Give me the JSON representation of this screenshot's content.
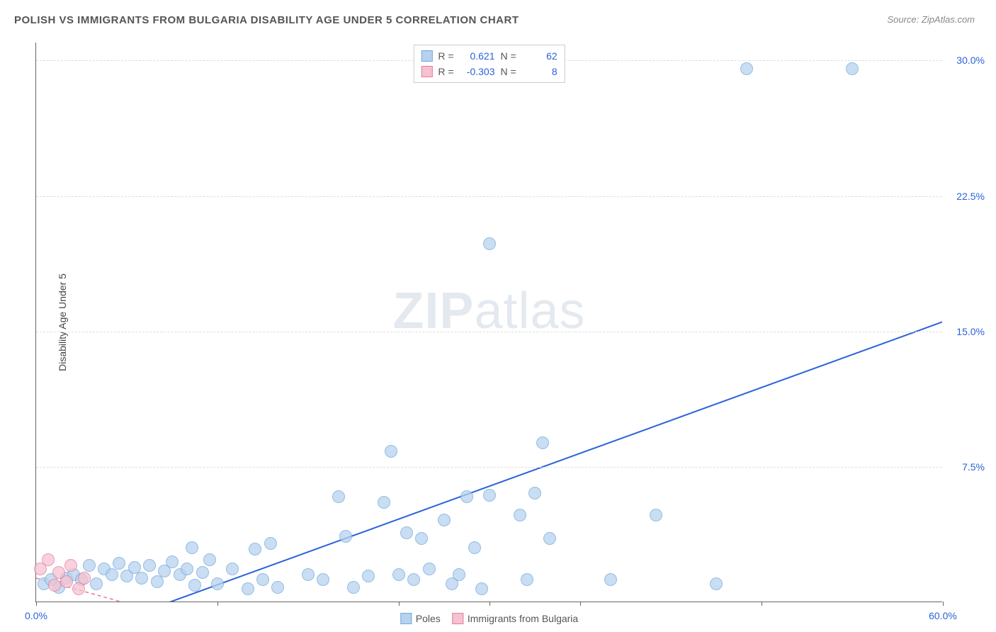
{
  "title": "POLISH VS IMMIGRANTS FROM BULGARIA DISABILITY AGE UNDER 5 CORRELATION CHART",
  "source_label": "Source: ZipAtlas.com",
  "y_axis_label": "Disability Age Under 5",
  "watermark": {
    "bold": "ZIP",
    "rest": "atlas"
  },
  "chart": {
    "type": "scatter",
    "x_range": [
      0,
      60
    ],
    "y_range": [
      0,
      31
    ],
    "x_ticks": [
      0,
      12,
      24,
      30,
      36,
      48,
      60
    ],
    "x_tick_labels": {
      "0": "0.0%",
      "60": "60.0%"
    },
    "y_ticks": [
      7.5,
      15.0,
      22.5,
      30.0
    ],
    "y_tick_labels": [
      "7.5%",
      "15.0%",
      "22.5%",
      "30.0%"
    ],
    "grid_color": "#dddddd",
    "background_color": "#ffffff",
    "axis_color": "#666666",
    "marker_radius": 9,
    "series": [
      {
        "name": "Poles",
        "fill": "#b7d2ef",
        "stroke": "#6fa8dc",
        "r_value": "0.621",
        "n_value": "62",
        "trend": {
          "x1": 5,
          "y1": -1.2,
          "x2": 60,
          "y2": 15.5,
          "color": "#2962d9",
          "width": 2,
          "dash": "none"
        },
        "points": [
          [
            0.5,
            1.0
          ],
          [
            1.0,
            1.2
          ],
          [
            1.5,
            0.8
          ],
          [
            2.0,
            1.3
          ],
          [
            2.5,
            1.5
          ],
          [
            3.0,
            1.2
          ],
          [
            3.5,
            2.0
          ],
          [
            4.0,
            1.0
          ],
          [
            4.5,
            1.8
          ],
          [
            5.0,
            1.5
          ],
          [
            5.5,
            2.1
          ],
          [
            6.0,
            1.4
          ],
          [
            6.5,
            1.9
          ],
          [
            7.0,
            1.3
          ],
          [
            7.5,
            2.0
          ],
          [
            8.0,
            1.1
          ],
          [
            8.5,
            1.7
          ],
          [
            9.0,
            2.2
          ],
          [
            9.5,
            1.5
          ],
          [
            10.0,
            1.8
          ],
          [
            10.3,
            3.0
          ],
          [
            10.5,
            0.9
          ],
          [
            11.0,
            1.6
          ],
          [
            11.5,
            2.3
          ],
          [
            12.0,
            1.0
          ],
          [
            13.0,
            1.8
          ],
          [
            14.0,
            0.7
          ],
          [
            14.5,
            2.9
          ],
          [
            15.0,
            1.2
          ],
          [
            15.5,
            3.2
          ],
          [
            16.0,
            0.8
          ],
          [
            18.0,
            1.5
          ],
          [
            19.0,
            1.2
          ],
          [
            20.0,
            5.8
          ],
          [
            20.5,
            3.6
          ],
          [
            21.0,
            0.8
          ],
          [
            22.0,
            1.4
          ],
          [
            23.0,
            5.5
          ],
          [
            23.5,
            8.3
          ],
          [
            24.0,
            1.5
          ],
          [
            24.5,
            3.8
          ],
          [
            25.0,
            1.2
          ],
          [
            25.5,
            3.5
          ],
          [
            26.0,
            1.8
          ],
          [
            27.0,
            4.5
          ],
          [
            27.5,
            1.0
          ],
          [
            28.0,
            1.5
          ],
          [
            28.5,
            5.8
          ],
          [
            29.0,
            3.0
          ],
          [
            29.5,
            0.7
          ],
          [
            30.0,
            5.9
          ],
          [
            32.0,
            4.8
          ],
          [
            32.5,
            1.2
          ],
          [
            33.0,
            6.0
          ],
          [
            33.5,
            8.8
          ],
          [
            34.0,
            3.5
          ],
          [
            38.0,
            1.2
          ],
          [
            41.0,
            4.8
          ],
          [
            45.0,
            1.0
          ],
          [
            47.0,
            29.5
          ],
          [
            54.0,
            29.5
          ],
          [
            30.0,
            19.8
          ]
        ]
      },
      {
        "name": "Immigrants from Bulgaria",
        "fill": "#f5c2cf",
        "stroke": "#e67a9b",
        "r_value": "-0.303",
        "n_value": "8",
        "trend": {
          "x1": 0,
          "y1": 1.3,
          "x2": 9,
          "y2": -0.8,
          "color": "#e67a9b",
          "width": 1.5,
          "dash": "5,4"
        },
        "points": [
          [
            0.3,
            1.8
          ],
          [
            0.8,
            2.3
          ],
          [
            1.2,
            0.9
          ],
          [
            1.5,
            1.6
          ],
          [
            2.0,
            1.1
          ],
          [
            2.3,
            2.0
          ],
          [
            2.8,
            0.7
          ],
          [
            3.2,
            1.3
          ]
        ]
      }
    ]
  },
  "legend_bottom": [
    {
      "label": "Poles",
      "fill": "#b7d2ef",
      "stroke": "#6fa8dc"
    },
    {
      "label": "Immigrants from Bulgaria",
      "fill": "#f5c2cf",
      "stroke": "#e67a9b"
    }
  ]
}
